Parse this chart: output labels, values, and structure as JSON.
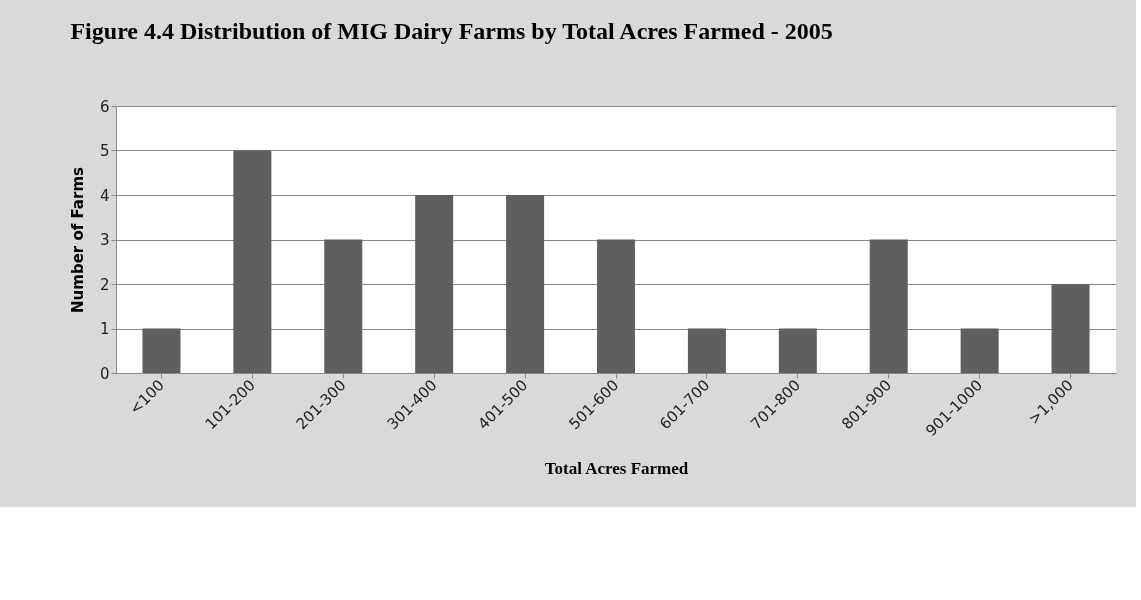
{
  "chart_data": {
    "type": "bar",
    "title": "Figure 4.4 Distribution of MIG Dairy Farms by Total Acres Farmed - 2005",
    "xlabel": "Total Acres Farmed",
    "ylabel": "Number of Farms",
    "categories": [
      "<100",
      "101-200",
      "201-300",
      "301-400",
      "401-500",
      "501-600",
      "601-700",
      "701-800",
      "801-900",
      "901-1000",
      ">1,000"
    ],
    "values": [
      1,
      5,
      3,
      4,
      4,
      3,
      1,
      1,
      3,
      1,
      2
    ],
    "color": "#5f5f5f",
    "ylim": [
      0,
      6
    ],
    "yticks": [
      0,
      1,
      2,
      3,
      4,
      5,
      6
    ],
    "grid": "y"
  }
}
